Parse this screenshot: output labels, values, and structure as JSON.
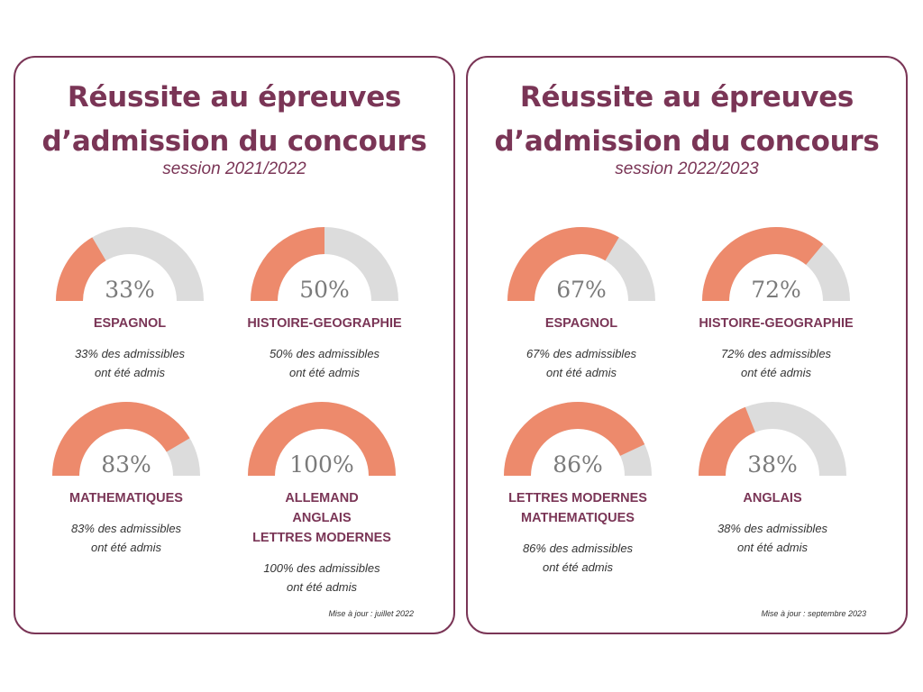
{
  "chart_data": [
    {
      "type": "gauge",
      "title_line1": "Réussite au épreuves",
      "title_line2": "d’admission du concours",
      "subtitle": "session 2021/2022",
      "ylim": [
        0,
        100
      ],
      "gauges": [
        {
          "value": 33,
          "value_label": "33%",
          "labels": [
            "ESPAGNOL"
          ],
          "desc1": "33% des admissibles",
          "desc2": "ont été admis"
        },
        {
          "value": 50,
          "value_label": "50%",
          "labels": [
            "HISTOIRE-GEOGRAPHIE"
          ],
          "desc1": "50% des admissibles",
          "desc2": "ont été admis"
        },
        {
          "value": 83,
          "value_label": "83%",
          "labels": [
            "MATHEMATIQUES"
          ],
          "desc1": "83% des admissibles",
          "desc2": "ont été admis"
        },
        {
          "value": 100,
          "value_label": "100%",
          "labels": [
            "ALLEMAND",
            "ANGLAIS",
            "LETTRES MODERNES"
          ],
          "desc1": "100% des admissibles",
          "desc2": "ont été admis"
        }
      ],
      "update_note": "Mise à jour : juillet 2022"
    },
    {
      "type": "gauge",
      "title_line1": "Réussite au épreuves",
      "title_line2": "d’admission du concours",
      "subtitle": "session 2022/2023",
      "ylim": [
        0,
        100
      ],
      "gauges": [
        {
          "value": 67,
          "value_label": "67%",
          "labels": [
            "ESPAGNOL"
          ],
          "desc1": "67% des admissibles",
          "desc2": "ont été admis"
        },
        {
          "value": 72,
          "value_label": "72%",
          "labels": [
            "HISTOIRE-GEOGRAPHIE"
          ],
          "desc1": "72% des admissibles",
          "desc2": "ont été admis"
        },
        {
          "value": 86,
          "value_label": "86%",
          "labels": [
            "LETTRES MODERNES",
            "MATHEMATIQUES"
          ],
          "desc1": "86% des admissibles",
          "desc2": "ont été admis"
        },
        {
          "value": 38,
          "value_label": "38%",
          "labels": [
            "ANGLAIS"
          ],
          "desc1": "38% des admissibles",
          "desc2": "ont été admis"
        }
      ],
      "update_note": "Mise à jour : septembre 2023"
    }
  ],
  "colors": {
    "accent": "#7a3556",
    "fill": "#ed8a6c",
    "track": "#dcdcdc",
    "value_text": "#7a7a7a"
  }
}
